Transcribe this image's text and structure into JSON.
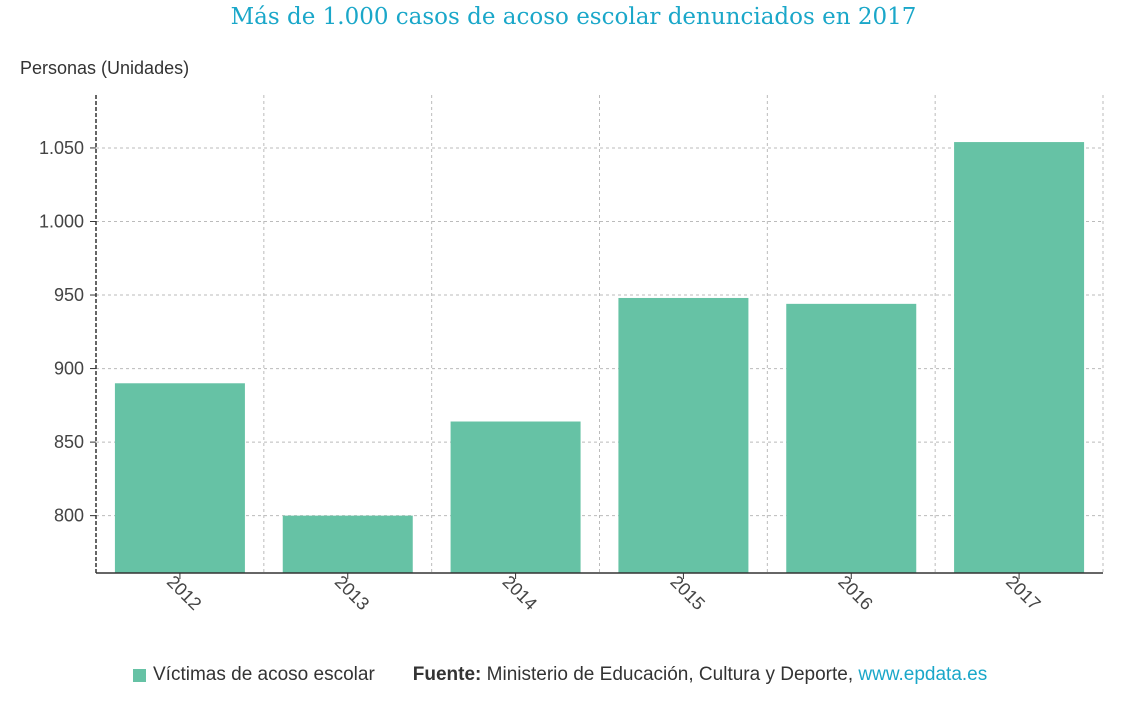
{
  "chart_data": {
    "type": "bar",
    "title": "Más de 1.000 casos de acoso escolar denunciados en 2017",
    "ylabel": "Personas (Unidades)",
    "xlabel": "",
    "categories": [
      "2012",
      "2013",
      "2014",
      "2015",
      "2016",
      "2017"
    ],
    "series": [
      {
        "name": "Víctimas de acoso escolar",
        "values": [
          890,
          800,
          864,
          948,
          944,
          1054
        ]
      }
    ],
    "ylim": [
      761,
      1086
    ],
    "yticks": [
      800,
      850,
      900,
      950,
      1000,
      1050
    ],
    "ytick_labels": [
      "800",
      "850",
      "900",
      "950",
      "1.000",
      "1.050"
    ],
    "grid": true,
    "legend": "bottom-left"
  },
  "colors": {
    "bar": "#66c2a5",
    "title": "#1aa7c9",
    "link": "#1aa7c9"
  },
  "footer": {
    "legend_label": "Víctimas de acoso escolar",
    "source_label": "Fuente:",
    "source_text": " Ministerio de Educación, Cultura y Deporte, ",
    "source_link": "www.epdata.es"
  }
}
